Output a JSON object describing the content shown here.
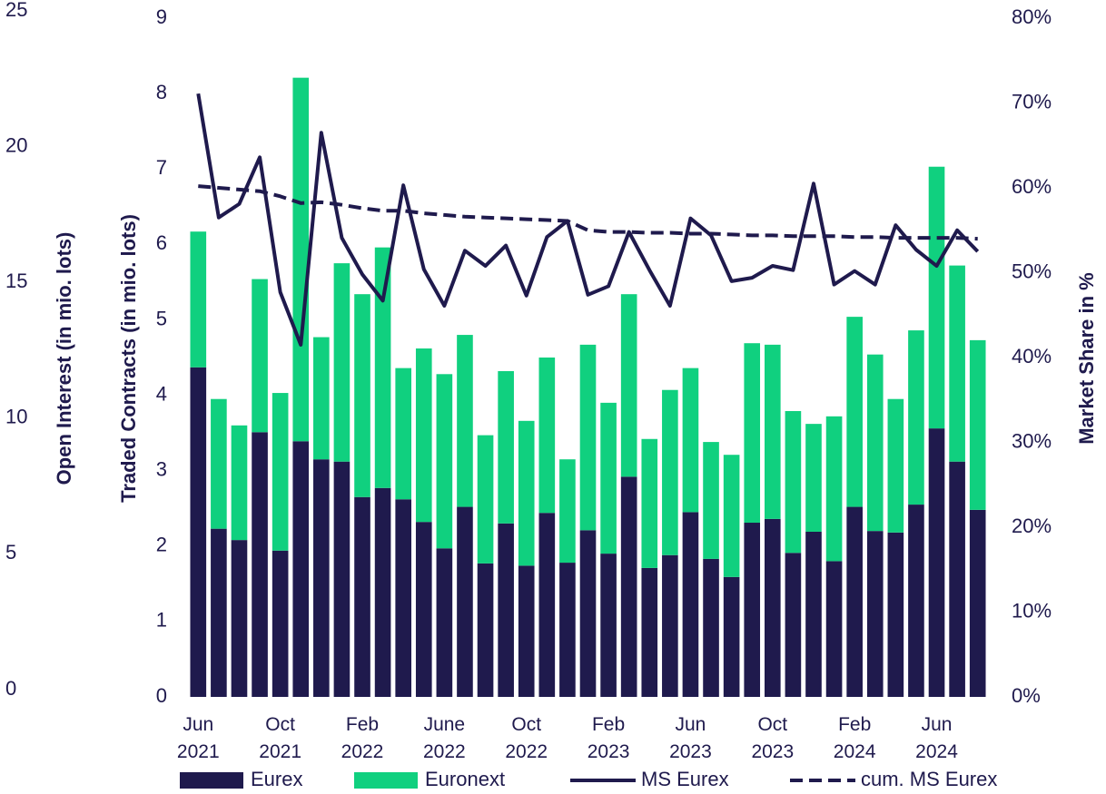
{
  "chart_data": {
    "type": "bar",
    "stacked": true,
    "y3label": "Open Interest (in mio. lots)",
    "ylabel": "Traded Contracts (in mio. lots)",
    "y2label": "Market Share in %",
    "categories": [
      "Jun 2021",
      null,
      null,
      null,
      "Oct 2021",
      null,
      null,
      null,
      "Feb 2022",
      null,
      null,
      null,
      "June 2022",
      null,
      null,
      null,
      "Oct 2022",
      null,
      null,
      null,
      "Feb 2023",
      null,
      null,
      null,
      "Jun 2023",
      null,
      null,
      null,
      "Oct 2023",
      null,
      null,
      null,
      "Feb 2024",
      null,
      null,
      null,
      "Jun 2024",
      null,
      null
    ],
    "series": [
      {
        "name": "Eurex",
        "type": "bar",
        "color": "#1f1a4d",
        "values": [
          4.37,
          2.23,
          2.08,
          3.51,
          1.94,
          3.39,
          3.15,
          3.12,
          2.65,
          2.77,
          2.62,
          2.32,
          1.97,
          2.52,
          1.77,
          2.3,
          1.74,
          2.44,
          1.78,
          2.21,
          1.9,
          2.92,
          1.71,
          1.88,
          2.45,
          1.83,
          1.59,
          2.31,
          2.36,
          1.91,
          2.19,
          1.8,
          2.52,
          2.2,
          2.18,
          2.55,
          3.56,
          3.12,
          2.48
        ]
      },
      {
        "name": "Euronext",
        "type": "bar",
        "color": "#10d07f",
        "values": [
          1.8,
          1.72,
          1.52,
          2.03,
          2.09,
          4.82,
          1.62,
          2.63,
          2.69,
          3.19,
          1.74,
          2.3,
          2.31,
          2.28,
          1.7,
          2.02,
          1.92,
          2.06,
          1.37,
          2.46,
          2.0,
          2.42,
          1.71,
          2.19,
          1.91,
          1.55,
          1.62,
          2.38,
          2.31,
          1.88,
          1.43,
          1.92,
          2.52,
          2.34,
          1.77,
          2.31,
          3.47,
          2.6,
          2.25
        ]
      },
      {
        "name": "MS Eurex",
        "type": "line",
        "axis": "y2",
        "color": "#1f1a4d",
        "dashed": false,
        "values": [
          71.1,
          56.5,
          58.1,
          63.6,
          47.7,
          41.5,
          66.5,
          54.1,
          49.8,
          46.7,
          60.3,
          50.4,
          46.1,
          52.6,
          50.8,
          53.2,
          47.3,
          54.2,
          56.1,
          47.4,
          48.4,
          54.8,
          50.3,
          46.1,
          56.4,
          54.4,
          49.0,
          49.4,
          50.8,
          50.3,
          60.5,
          48.6,
          50.2,
          48.6,
          55.6,
          52.7,
          50.8,
          55.0,
          52.5
        ]
      },
      {
        "name": "cum. MS Eurex",
        "type": "line",
        "axis": "y2",
        "color": "#1f1a4d",
        "dashed": true,
        "values": [
          60.2,
          60.0,
          59.8,
          59.6,
          59.0,
          58.2,
          58.3,
          58.0,
          57.6,
          57.3,
          57.3,
          57.0,
          56.8,
          56.6,
          56.5,
          56.4,
          56.3,
          56.2,
          56.1,
          55.0,
          54.8,
          54.8,
          54.7,
          54.7,
          54.6,
          54.6,
          54.5,
          54.4,
          54.4,
          54.3,
          54.3,
          54.3,
          54.2,
          54.2,
          54.1,
          54.1,
          54.1,
          54.1,
          54.0
        ]
      }
    ],
    "ylim": [
      0,
      9
    ],
    "yticks": [
      0,
      1,
      2,
      3,
      4,
      5,
      6,
      7,
      8,
      9
    ],
    "y2lim": [
      0,
      80
    ],
    "y2ticks": [
      {
        "value": 0,
        "label": "0%"
      },
      {
        "value": 10,
        "label": "10%"
      },
      {
        "value": 20,
        "label": "20%"
      },
      {
        "value": 30,
        "label": "30%"
      },
      {
        "value": 40,
        "label": "40%"
      },
      {
        "value": 50,
        "label": "50%"
      },
      {
        "value": 60,
        "label": "60%"
      },
      {
        "value": 70,
        "label": "70%"
      },
      {
        "value": 80,
        "label": "80%"
      }
    ],
    "y3lim": [
      0,
      25
    ],
    "y3ticks": [
      0,
      5,
      10,
      15,
      20,
      25
    ],
    "grid": false,
    "legend": "bottom"
  }
}
